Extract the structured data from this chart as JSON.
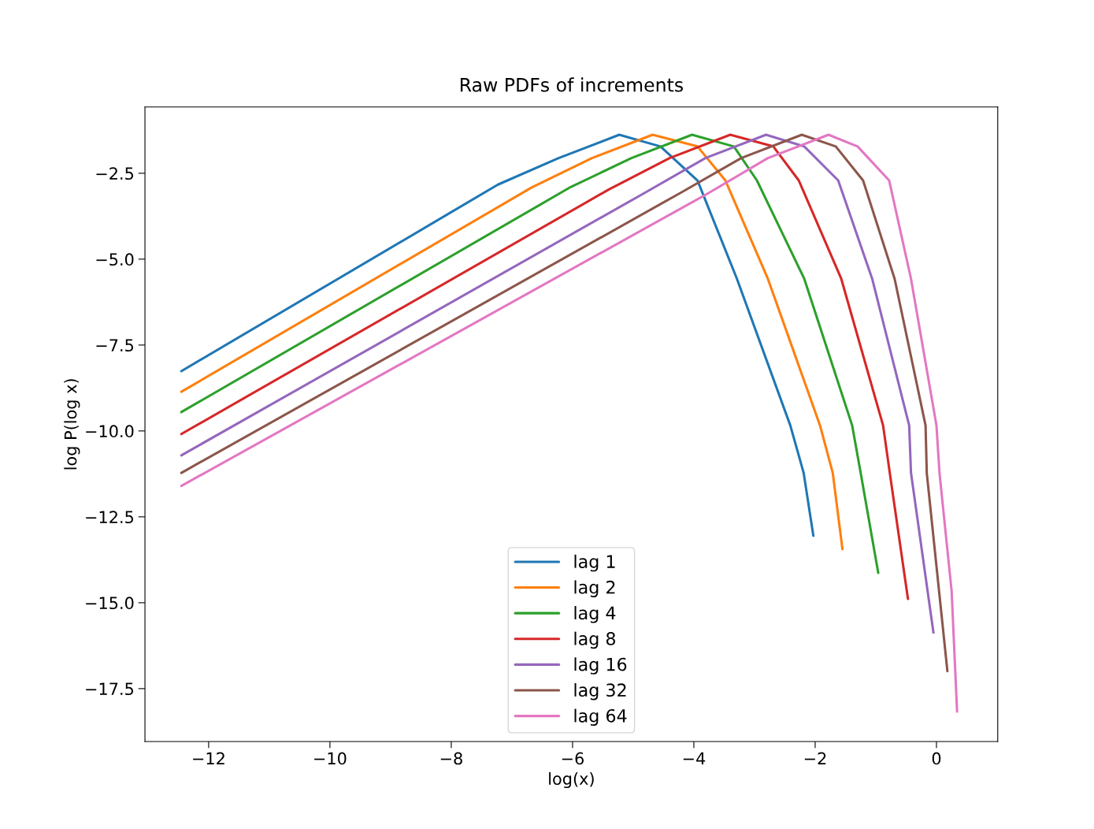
{
  "chart_data": {
    "type": "line",
    "title": "Raw PDFs of increments",
    "xlabel": "log(x)",
    "ylabel": "log P(log x)",
    "xlim": [
      -13.05,
      1.01
    ],
    "ylim": [
      -19.04,
      -0.57
    ],
    "xticks": [
      {
        "value": -12,
        "label": "−12"
      },
      {
        "value": -10,
        "label": "−10"
      },
      {
        "value": -8,
        "label": "−8"
      },
      {
        "value": -6,
        "label": "−6"
      },
      {
        "value": -4,
        "label": "−4"
      },
      {
        "value": -2,
        "label": "−2"
      },
      0
    ],
    "yticks": [
      {
        "value": -2.5,
        "label": "−2.5"
      },
      {
        "value": -5.0,
        "label": "−5.0"
      },
      {
        "value": -7.5,
        "label": "−7.5"
      },
      {
        "value": -10.0,
        "label": "−10.0"
      },
      {
        "value": -12.5,
        "label": "−12.5"
      },
      {
        "value": -15.0,
        "label": "−15.0"
      },
      {
        "value": -17.5,
        "label": "−17.5"
      }
    ],
    "grid": false,
    "legend": "bottom",
    "marker": "none",
    "line_style": "solid",
    "series": [
      {
        "name": "lag 1",
        "color": "#1f77b4",
        "x": [
          -12.45,
          -7.23,
          -6.23,
          -5.23,
          -4.55,
          -3.94,
          -3.29,
          -2.41,
          -2.19,
          -2.03
        ],
        "values": [
          -8.26,
          -2.83,
          -2.06,
          -1.38,
          -1.72,
          -2.71,
          -5.57,
          -9.84,
          -11.22,
          -13.05
        ]
      },
      {
        "name": "lag 2",
        "color": "#ff7f0e",
        "x": [
          -12.45,
          -6.68,
          -5.68,
          -4.68,
          -3.94,
          -3.48,
          -2.78,
          -1.92,
          -1.71,
          -1.55
        ],
        "values": [
          -8.86,
          -2.92,
          -2.06,
          -1.38,
          -1.72,
          -2.71,
          -5.57,
          -9.84,
          -11.22,
          -13.44
        ]
      },
      {
        "name": "lag 4",
        "color": "#2ca02c",
        "x": [
          -12.45,
          -6.03,
          -5.03,
          -4.03,
          -3.34,
          -2.96,
          -2.18,
          -1.39,
          -1.25,
          -0.96
        ],
        "values": [
          -9.45,
          -2.9,
          -2.06,
          -1.38,
          -1.72,
          -2.71,
          -5.57,
          -9.84,
          -11.22,
          -14.13
        ]
      },
      {
        "name": "lag 8",
        "color": "#d62728",
        "x": [
          -12.45,
          -5.4,
          -4.4,
          -3.4,
          -2.69,
          -2.27,
          -1.57,
          -0.88,
          -0.77,
          -0.47
        ],
        "values": [
          -10.09,
          -2.97,
          -2.06,
          -1.38,
          -1.72,
          -2.71,
          -5.57,
          -9.84,
          -11.22,
          -14.89
        ]
      },
      {
        "name": "lag 16",
        "color": "#9467bd",
        "x": [
          -12.45,
          -4.81,
          -3.81,
          -2.81,
          -2.18,
          -1.62,
          -1.06,
          -0.45,
          -0.42,
          -0.05
        ],
        "values": [
          -10.71,
          -3.07,
          -2.06,
          -1.38,
          -1.72,
          -2.71,
          -5.57,
          -9.84,
          -11.22,
          -15.87
        ]
      },
      {
        "name": "lag 32",
        "color": "#8c564b",
        "x": [
          -12.45,
          -4.22,
          -3.22,
          -2.22,
          -1.66,
          -1.21,
          -0.69,
          -0.18,
          -0.16,
          0.18
        ],
        "values": [
          -11.22,
          -3.07,
          -2.06,
          -1.38,
          -1.72,
          -2.71,
          -5.57,
          -9.84,
          -11.22,
          -16.99
        ]
      },
      {
        "name": "lag 64",
        "color": "#e377c2",
        "x": [
          -12.45,
          -3.78,
          -2.78,
          -1.78,
          -1.3,
          -0.78,
          -0.42,
          0.0,
          0.05,
          0.25,
          0.34
        ],
        "values": [
          -11.6,
          -3.1,
          -2.06,
          -1.38,
          -1.72,
          -2.71,
          -5.57,
          -9.84,
          -11.22,
          -14.66,
          -18.17
        ]
      }
    ]
  }
}
